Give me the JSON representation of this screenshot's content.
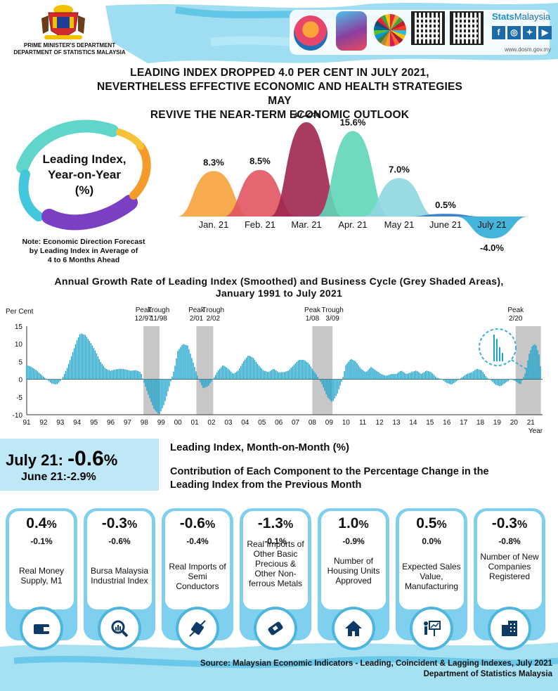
{
  "header": {
    "ministry_line1": "PRIME MINISTER'S DEPARTMENT",
    "ministry_line2": "DEPARTMENT OF STATISTICS MALAYSIA",
    "brand_prefix": "Stats",
    "brand_suffix": "Malaysia",
    "website": "www.dosm.gov.my",
    "social_icons": [
      "facebook-icon",
      "instagram-icon",
      "twitter-icon",
      "youtube-icon"
    ]
  },
  "headline": {
    "line1": "LEADING INDEX DROPPED 4.0 PER CENT IN JULY 2021,",
    "line2": "NEVERTHELESS EFFECTIVE ECONOMIC AND HEALTH STRATEGIES MAY",
    "line3": "REVIVE THE NEAR-TERM ECONOMIC OUTLOOK"
  },
  "yoy": {
    "label_line1": "Leading Index,",
    "label_line2": "Year-on-Year",
    "label_line3": "(%)",
    "note_line1": "Note: Economic Direction Forecast",
    "note_line2": "by Leading Index in Average of",
    "note_line3": "4 to 6 Months Ahead"
  },
  "chart_data": [
    {
      "type": "area",
      "categories": [
        "Jan. 21",
        "Feb. 21",
        "Mar. 21",
        "Apr. 21",
        "May 21",
        "June 21",
        "July 21"
      ],
      "values": [
        8.3,
        8.5,
        17.2,
        15.6,
        7.0,
        0.5,
        -4.0
      ],
      "value_labels": [
        "8.3%",
        "8.5%",
        "17.2%",
        "15.6%",
        "7.0%",
        "0.5%",
        "-4.0%"
      ],
      "colors": [
        "#f7a23b",
        "#e05560",
        "#a0264f",
        "#5fd6b8",
        "#8fd6e0",
        "#2a78c8",
        "#3ab0d8"
      ],
      "title": "",
      "xlabel": "",
      "ylabel": ""
    },
    {
      "type": "bar",
      "title": "Annual Growth Rate of Leading Index (Smoothed) and Business Cycle (Grey Shaded Areas),",
      "title_line2": "January 1991 to July 2021",
      "ylabel": "Per Cent",
      "xlabel": "Year",
      "ylim": [
        -10,
        15
      ],
      "yticks": [
        "15",
        "10",
        "5",
        "0",
        "-5",
        "-10"
      ],
      "xticks": [
        "91",
        "92",
        "93",
        "94",
        "95",
        "96",
        "97",
        "98",
        "99",
        "00",
        "01",
        "02",
        "03",
        "04",
        "05",
        "06",
        "07",
        "08",
        "09",
        "10",
        "11",
        "12",
        "13",
        "14",
        "15",
        "16",
        "17",
        "18",
        "19",
        "20",
        "21"
      ],
      "grid": false,
      "series_points": [
        [
          1991.0,
          4
        ],
        [
          1991.3,
          3.5
        ],
        [
          1991.6,
          2.5
        ],
        [
          1991.9,
          1.2
        ],
        [
          1992.2,
          0
        ],
        [
          1992.5,
          -1.2
        ],
        [
          1992.8,
          -1.5
        ],
        [
          1993.1,
          0
        ],
        [
          1993.4,
          3
        ],
        [
          1993.7,
          7
        ],
        [
          1994.0,
          11
        ],
        [
          1994.2,
          13
        ],
        [
          1994.5,
          12.5
        ],
        [
          1994.8,
          10.5
        ],
        [
          1995.1,
          8
        ],
        [
          1995.4,
          5
        ],
        [
          1995.7,
          3
        ],
        [
          1996.0,
          2.4
        ],
        [
          1996.3,
          2.8
        ],
        [
          1996.6,
          3
        ],
        [
          1996.9,
          2.8
        ],
        [
          1997.2,
          2.4
        ],
        [
          1997.5,
          2.6
        ],
        [
          1997.8,
          2
        ],
        [
          1998.0,
          -1
        ],
        [
          1998.3,
          -5
        ],
        [
          1998.6,
          -8.5
        ],
        [
          1998.9,
          -10
        ],
        [
          1999.2,
          -7
        ],
        [
          1999.5,
          -2
        ],
        [
          1999.8,
          3
        ],
        [
          2000.0,
          8
        ],
        [
          2000.3,
          10
        ],
        [
          2000.6,
          9.5
        ],
        [
          2000.9,
          5
        ],
        [
          2001.2,
          0.5
        ],
        [
          2001.5,
          -2.5
        ],
        [
          2001.8,
          -2
        ],
        [
          2002.1,
          0
        ],
        [
          2002.4,
          2.5
        ],
        [
          2002.7,
          4
        ],
        [
          2003.0,
          3
        ],
        [
          2003.3,
          1.5
        ],
        [
          2003.6,
          2.5
        ],
        [
          2003.9,
          5
        ],
        [
          2004.2,
          6.8
        ],
        [
          2004.5,
          6
        ],
        [
          2004.8,
          4
        ],
        [
          2005.1,
          2.5
        ],
        [
          2005.4,
          2
        ],
        [
          2005.7,
          3
        ],
        [
          2006.0,
          2
        ],
        [
          2006.3,
          2
        ],
        [
          2006.6,
          2.5
        ],
        [
          2006.9,
          4
        ],
        [
          2007.2,
          5.5
        ],
        [
          2007.5,
          5.5
        ],
        [
          2007.8,
          4.5
        ],
        [
          2008.0,
          3
        ],
        [
          2008.3,
          1
        ],
        [
          2008.6,
          -1.5
        ],
        [
          2008.9,
          -5
        ],
        [
          2009.2,
          -6.5
        ],
        [
          2009.5,
          -4
        ],
        [
          2009.8,
          0
        ],
        [
          2010.0,
          4
        ],
        [
          2010.3,
          5.8
        ],
        [
          2010.6,
          5
        ],
        [
          2010.9,
          3
        ],
        [
          2011.2,
          2
        ],
        [
          2011.5,
          3.5
        ],
        [
          2011.8,
          2.5
        ],
        [
          2012.1,
          1.5
        ],
        [
          2012.4,
          1
        ],
        [
          2012.7,
          1.5
        ],
        [
          2013.0,
          1.5
        ],
        [
          2013.3,
          2.5
        ],
        [
          2013.6,
          1.5
        ],
        [
          2013.9,
          2
        ],
        [
          2014.2,
          2.5
        ],
        [
          2014.5,
          1.5
        ],
        [
          2014.8,
          2.5
        ],
        [
          2015.1,
          2
        ],
        [
          2015.4,
          0.5
        ],
        [
          2015.7,
          0
        ],
        [
          2016.0,
          -1
        ],
        [
          2016.3,
          -1.5
        ],
        [
          2016.6,
          -0.5
        ],
        [
          2016.9,
          0.5
        ],
        [
          2017.2,
          1.5
        ],
        [
          2017.5,
          2
        ],
        [
          2017.8,
          3
        ],
        [
          2018.1,
          2.5
        ],
        [
          2018.4,
          0.5
        ],
        [
          2018.7,
          -0.5
        ],
        [
          2018.9,
          -1.5
        ],
        [
          2019.2,
          -2
        ],
        [
          2019.5,
          -1
        ],
        [
          2019.8,
          0
        ],
        [
          2020.1,
          -0.5
        ],
        [
          2020.4,
          -1.5
        ],
        [
          2020.7,
          2
        ],
        [
          2020.9,
          7
        ],
        [
          2021.1,
          9.5
        ],
        [
          2021.3,
          10
        ],
        [
          2021.5,
          7
        ],
        [
          2021.6,
          3
        ]
      ],
      "shaded_periods": [
        [
          1997.95,
          1998.9
        ],
        [
          2001.1,
          2002.1
        ],
        [
          2008.0,
          2009.2
        ],
        [
          2020.1,
          2021.6
        ]
      ],
      "annotations": [
        {
          "label": "Peak",
          "date": "12/97"
        },
        {
          "label": "Trough",
          "date": "11/98"
        },
        {
          "label": "Peak",
          "date": "2/01"
        },
        {
          "label": "Trough",
          "date": "2/02"
        },
        {
          "label": "Peak",
          "date": "1/08"
        },
        {
          "label": "Trough",
          "date": "3/09"
        },
        {
          "label": "Peak",
          "date": "2/20"
        }
      ],
      "bar_color": "#1ba3cc",
      "shade_color": "#c7c7c7"
    }
  ],
  "summary": {
    "july_label": "July 21:",
    "july_value": "-0.6",
    "july_unit": "%",
    "june_text": "June 21:-2.9%",
    "mom_title": "Leading Index, Month-on-Month (%)",
    "contrib_line1": "Contribution of Each Component to the Percentage Change in the",
    "contrib_line2": "Leading Index from the Previous Month"
  },
  "components": [
    {
      "value": "0.4",
      "unit": "%",
      "prev": "-0.1%",
      "name": "Real Money Supply, M1",
      "icon": "wallet-icon"
    },
    {
      "value": "-0.3",
      "unit": "%",
      "prev": "-0.6%",
      "name": "Bursa Malaysia Industrial Index",
      "icon": "magnifier-chart-icon"
    },
    {
      "value": "-0.6",
      "unit": "%",
      "prev": "-0.4%",
      "name": "Real Imports of Semi Conductors",
      "icon": "chip-icon"
    },
    {
      "value": "-1.3",
      "unit": "%",
      "prev": "-0.1%",
      "name": "Real Imports of Other Basic Precious & Other Non-ferrous Metals",
      "icon": "metal-bar-icon"
    },
    {
      "value": "1.0",
      "unit": "%",
      "prev": "-0.9%",
      "name": "Number of Housing Units Approved",
      "icon": "house-icon"
    },
    {
      "value": "0.5",
      "unit": "%",
      "prev": "0.0%",
      "name": "Expected Sales Value, Manufacturing",
      "icon": "presentation-icon"
    },
    {
      "value": "-0.3",
      "unit": "%",
      "prev": "-0.8%",
      "name": "Number of New Companies Registered",
      "icon": "buildings-icon"
    }
  ],
  "source": {
    "line1": "Source: Malaysian Economic Indicators - Leading, Coincident & Lagging Indexes, July 2021",
    "line2": "Department of Statistics Malaysia"
  }
}
